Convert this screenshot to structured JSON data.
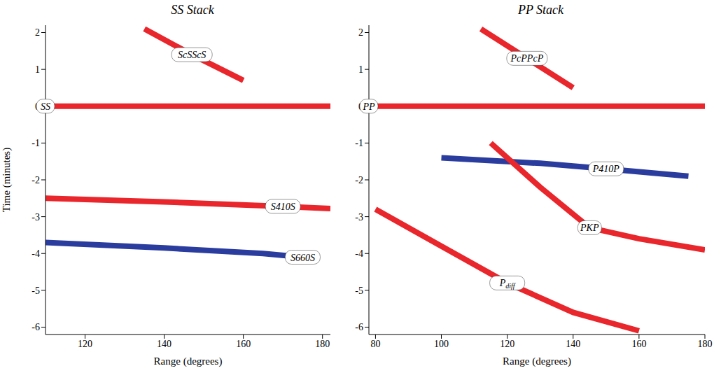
{
  "chart_data": [
    {
      "type": "line",
      "title": "SS Stack",
      "x_label": "Range (degrees)",
      "y_label": "Time (minutes)",
      "xlim": [
        110,
        182
      ],
      "xticks": [
        120,
        140,
        160,
        180
      ],
      "ylim": [
        -6.2,
        2.2
      ],
      "yticks": [
        -6,
        -5,
        -4,
        -3,
        -2,
        -1,
        0,
        1,
        2
      ],
      "series": [
        {
          "name": "SS",
          "color": "#e8262b",
          "x": [
            110,
            182
          ],
          "values": [
            0,
            0
          ]
        },
        {
          "name": "ScSScS",
          "color": "#e8262b",
          "x": [
            135,
            147,
            160
          ],
          "values": [
            2.1,
            1.4,
            0.7
          ]
        },
        {
          "name": "S410S",
          "color": "#e8262b",
          "x": [
            110,
            140,
            170,
            182
          ],
          "values": [
            -2.5,
            -2.6,
            -2.72,
            -2.78
          ]
        },
        {
          "name": "S660S",
          "color": "#2a3c9e",
          "x": [
            110,
            140,
            165,
            175
          ],
          "values": [
            -3.7,
            -3.85,
            -4.0,
            -4.1
          ]
        }
      ]
    },
    {
      "type": "line",
      "title": "PP Stack",
      "x_label": "Range (degrees)",
      "xlim": [
        78,
        180
      ],
      "xticks": [
        80,
        100,
        120,
        140,
        160,
        180
      ],
      "ylim": [
        -6.2,
        2.2
      ],
      "yticks": [
        -6,
        -5,
        -4,
        -3,
        -2,
        -1,
        0,
        1,
        2
      ],
      "series": [
        {
          "name": "PP",
          "color": "#e8262b",
          "x": [
            78,
            180
          ],
          "values": [
            0,
            0
          ]
        },
        {
          "name": "PcPPcP",
          "color": "#e8262b",
          "x": [
            112,
            126,
            140
          ],
          "values": [
            2.1,
            1.3,
            0.5
          ]
        },
        {
          "name": "P410P",
          "color": "#2a3c9e",
          "x": [
            100,
            130,
            150,
            175
          ],
          "values": [
            -1.4,
            -1.55,
            -1.7,
            -1.9
          ]
        },
        {
          "name": "PKP",
          "color": "#e8262b",
          "x": [
            115,
            130,
            145,
            160,
            180
          ],
          "values": [
            -1.0,
            -2.2,
            -3.3,
            -3.6,
            -3.9
          ]
        },
        {
          "name": "Pdiff",
          "color": "#e8262b",
          "x": [
            80,
            100,
            120,
            140,
            160
          ],
          "values": [
            -2.8,
            -3.8,
            -4.8,
            -5.6,
            -6.1
          ]
        }
      ]
    }
  ]
}
